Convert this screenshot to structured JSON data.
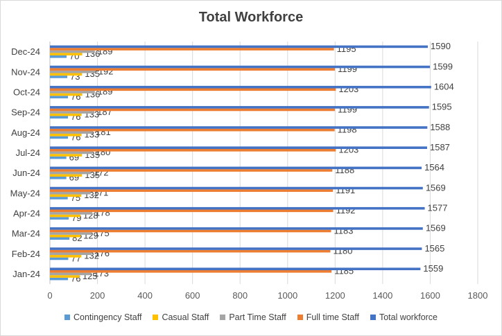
{
  "chart_data": {
    "type": "bar",
    "orientation": "horizontal",
    "title": "Total Workforce",
    "xlabel": "",
    "ylabel": "",
    "xlim": [
      0,
      1800
    ],
    "x_ticks": [
      "0",
      "200",
      "400",
      "600",
      "800",
      "1000",
      "1200",
      "1400",
      "1600",
      "1800"
    ],
    "grid": true,
    "legend_position": "bottom",
    "categories": [
      "Jan-24",
      "Feb-24",
      "Mar-24",
      "Apr-24",
      "May-24",
      "Jun-24",
      "Jul-24",
      "Aug-24",
      "Sep-24",
      "Oct-24",
      "Nov-24",
      "Dec-24"
    ],
    "series": [
      {
        "name": "Contingency Staff",
        "color": "#5b9bd5",
        "values": [
          76,
          77,
          82,
          79,
          75,
          69,
          69,
          76,
          76,
          76,
          73,
          70
        ]
      },
      {
        "name": "Casual Staff",
        "color": "#ffc000",
        "values": [
          125,
          132,
          129,
          128,
          132,
          135,
          135,
          133,
          133,
          136,
          135,
          136
        ]
      },
      {
        "name": "Part Time Staff",
        "color": "#a5a5a5",
        "values": [
          173,
          176,
          175,
          178,
          171,
          172,
          180,
          181,
          187,
          189,
          192,
          189
        ]
      },
      {
        "name": "Full time Staff",
        "color": "#ed7d31",
        "values": [
          1185,
          1180,
          1183,
          1192,
          1191,
          1188,
          1203,
          1198,
          1199,
          1203,
          1199,
          1195
        ]
      },
      {
        "name": "Total workforce",
        "color": "#4472c4",
        "values": [
          1559,
          1565,
          1569,
          1577,
          1569,
          1564,
          1587,
          1588,
          1595,
          1604,
          1599,
          1590
        ]
      }
    ]
  }
}
